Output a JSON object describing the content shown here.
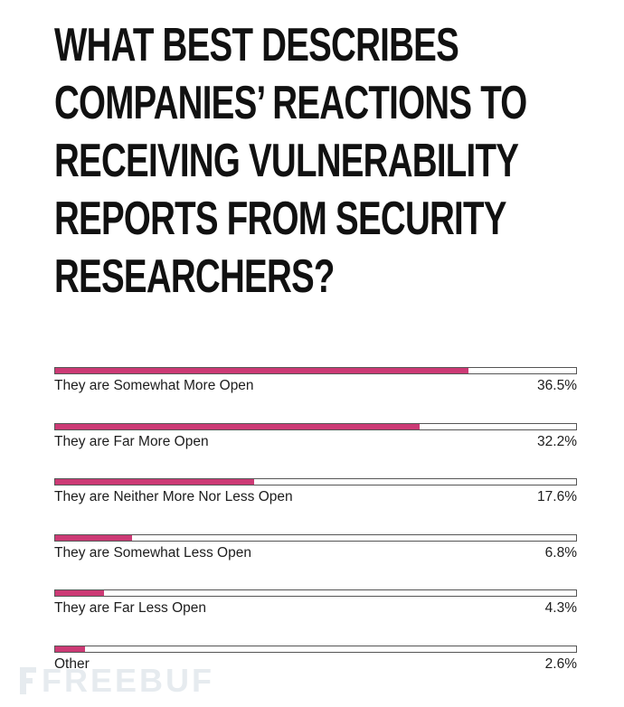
{
  "chart_data": {
    "type": "bar",
    "orientation": "horizontal",
    "title_lines": [
      "WHAT BEST DESCRIBES",
      "COMPANIES’ REACTIONS TO",
      "RECEIVING VULNERABILITY",
      "REPORTS FROM SECURITY",
      "RESEARCHERS?"
    ],
    "categories": [
      "They are Somewhat More Open",
      "They are Far More Open",
      "They are Neither More Nor Less Open",
      "They are Somewhat Less Open",
      "They are Far Less Open",
      "Other"
    ],
    "values": [
      36.5,
      32.2,
      17.6,
      6.8,
      4.3,
      2.6
    ],
    "value_labels": [
      "36.5%",
      "32.2%",
      "17.6%",
      "6.8%",
      "4.3%",
      "2.6%"
    ],
    "xlim": [
      0,
      46
    ],
    "grid": false,
    "bar_color": "#cc3a75"
  },
  "watermark": {
    "text": "FREEBUF",
    "icon": "freebuf-logo-icon"
  }
}
